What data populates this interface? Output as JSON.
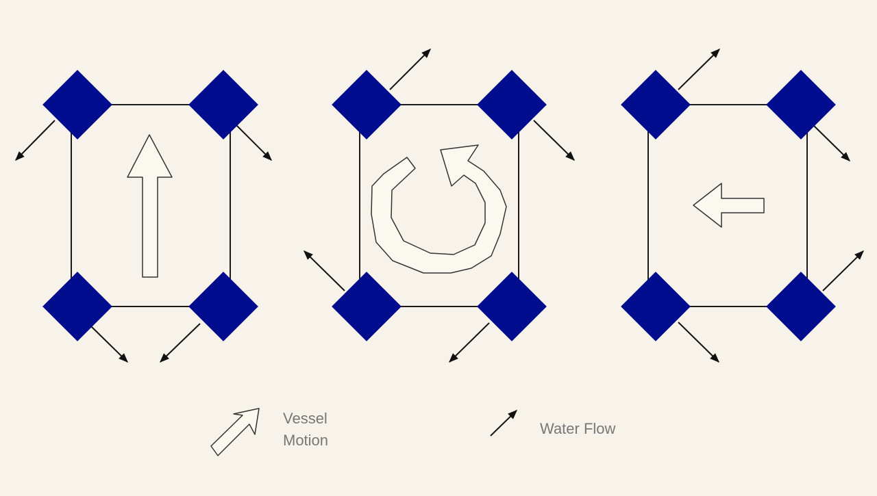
{
  "colors": {
    "background": "#f7f3ea",
    "thruster": "#000d8e",
    "frame_stroke": "#1a1a1a",
    "legend_text": "#777777"
  },
  "panels": [
    {
      "id": "surge",
      "vessel_motion": "forward",
      "icon": "straight-arrow-icon"
    },
    {
      "id": "yaw",
      "vessel_motion": "rotate counter-clockwise",
      "icon": "rotation-arrow-icon"
    },
    {
      "id": "sway",
      "vessel_motion": "left",
      "icon": "left-arrow-icon"
    }
  ],
  "legend": {
    "vessel_motion_line1": "Vessel",
    "vessel_motion_line2": "Motion",
    "water_flow": "Water Flow"
  }
}
